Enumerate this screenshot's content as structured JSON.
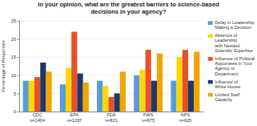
{
  "chart_data": {
    "type": "bar",
    "title": "In your opinion, what are the greatest barriers to science-based\ndecisions in your agency?",
    "y_label": "Percentage of Responses",
    "categories": [
      "CDC\nn=1404",
      "EPA\nn=1297",
      "FDA\nn=821",
      "FWS\nn=975",
      "NPS\nn=625"
    ],
    "series": [
      {
        "name": "Delay in Leadership\nMaking a Decision",
        "color": "#5b9bd5",
        "values": [
          8.5,
          7.5,
          8.5,
          10.0,
          8.5
        ]
      },
      {
        "name": "Absence of\nLeadership\nwith Needed\nScientific Expertise",
        "color": "#ffd700",
        "values": [
          8.5,
          12.0,
          7.0,
          11.5,
          15.0
        ]
      },
      {
        "name": "Influence of Political\nAppointees in Your\nAgency or\nDepartment",
        "color": "#e8502a",
        "values": [
          9.5,
          22.0,
          4.0,
          17.0,
          17.0
        ]
      },
      {
        "name": "Influence of\nWhite House",
        "color": "#1f3864",
        "values": [
          13.5,
          10.5,
          5.0,
          8.5,
          8.5
        ]
      },
      {
        "name": "Limited Staff\nCapacity",
        "color": "#f0a500",
        "values": [
          11.0,
          8.0,
          11.0,
          16.0,
          16.5
        ]
      }
    ],
    "ylim": [
      0,
      25
    ],
    "yticks": [
      0,
      5,
      10,
      15,
      20,
      25
    ],
    "grid": true,
    "legend": "right"
  }
}
